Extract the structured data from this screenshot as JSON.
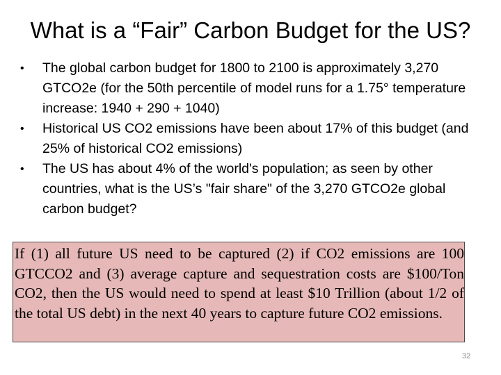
{
  "slide": {
    "title": "What is a “Fair” Carbon Budget for the US?",
    "bullets": [
      "The global carbon budget for 1800 to 2100 is approximately 3,270 GTCO2e (for the 50th percentile of model runs for a 1.75° temperature increase: 1940 + 290 + 1040)",
      "Historical US CO2 emissions have been about 17% of this budget (and 25% of historical CO2 emissions)",
      "The US has about 4% of the world's population; as seen by other countries, what is the US’s \"fair share\" of the 3,270 GTCO2e global carbon budget?"
    ],
    "callout": "If (1) all future US need to be captured (2) if CO2 emissions are 100 GTCCO2 and (3) average capture and sequestration costs are $100/Ton CO2, then the US would need to spend at least $10 Trillion (about 1/2 of the total US debt) in the next 40 years to capture future CO2 emissions.",
    "page_number": "32",
    "colors": {
      "callout_background": "#e6b9b8",
      "callout_border": "#4a4a4a",
      "page_number": "#8c8c8c"
    }
  }
}
